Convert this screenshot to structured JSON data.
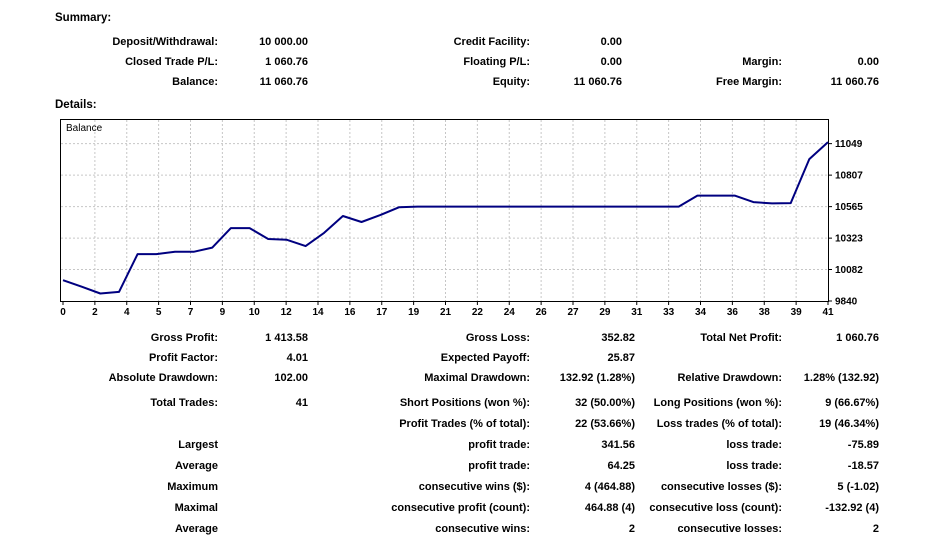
{
  "summary": {
    "heading": "Summary:",
    "rows": [
      {
        "c1l": "Deposit/Withdrawal:",
        "c1v": "10 000.00",
        "c2l": "Credit Facility:",
        "c2v": "0.00",
        "c3l": "",
        "c3v": ""
      },
      {
        "c1l": "Closed Trade P/L:",
        "c1v": "1 060.76",
        "c2l": "Floating P/L:",
        "c2v": "0.00",
        "c3l": "Margin:",
        "c3v": "0.00"
      },
      {
        "c1l": "Balance:",
        "c1v": "11 060.76",
        "c2l": "Equity:",
        "c2v": "11 060.76",
        "c3l": "Free Margin:",
        "c3v": "11 060.76"
      }
    ]
  },
  "details": {
    "heading": "Details:",
    "stats1": [
      {
        "c1l": "Gross Profit:",
        "c1v": "1 413.58",
        "c2l": "Gross Loss:",
        "c2v": "352.82",
        "c3l": "Total Net Profit:",
        "c3v": "1 060.76"
      },
      {
        "c1l": "Profit Factor:",
        "c1v": "4.01",
        "c2l": "Expected Payoff:",
        "c2v": "25.87",
        "c3l": "",
        "c3v": ""
      },
      {
        "c1l": "Absolute Drawdown:",
        "c1v": "102.00",
        "c2l": "Maximal Drawdown:",
        "c2v": "132.92 (1.28%)",
        "c3l": "Relative Drawdown:",
        "c3v": "1.28% (132.92)"
      }
    ],
    "stats2": [
      {
        "c1l": "Total Trades:",
        "c1v": "41",
        "c2l": "Short Positions (won %):",
        "c2v": "32 (50.00%)",
        "c3l": "Long Positions (won %):",
        "c3v": "9 (66.67%)"
      },
      {
        "c1l": "",
        "c1v": "",
        "c2l": "Profit Trades (% of total):",
        "c2v": "22 (53.66%)",
        "c3l": "Loss trades (% of total):",
        "c3v": "19 (46.34%)"
      },
      {
        "c1l": "Largest",
        "c1v": "",
        "c2l": "profit trade:",
        "c2v": "341.56",
        "c3l": "loss trade:",
        "c3v": "-75.89"
      },
      {
        "c1l": "Average",
        "c1v": "",
        "c2l": "profit trade:",
        "c2v": "64.25",
        "c3l": "loss trade:",
        "c3v": "-18.57"
      },
      {
        "c1l": "Maximum",
        "c1v": "",
        "c2l": "consecutive wins ($):",
        "c2v": "4 (464.88)",
        "c3l": "consecutive losses ($):",
        "c3v": "5 (-1.02)"
      },
      {
        "c1l": "Maximal",
        "c1v": "",
        "c2l": "consecutive profit (count):",
        "c2v": "464.88 (4)",
        "c3l": "consecutive loss (count):",
        "c3v": "-132.92 (4)"
      },
      {
        "c1l": "Average",
        "c1v": "",
        "c2l": "consecutive wins:",
        "c2v": "2",
        "c3l": "consecutive losses:",
        "c3v": "2"
      }
    ]
  },
  "chart_data": {
    "type": "line",
    "title": "Balance",
    "legend_position": "top-left-inside",
    "grid": true,
    "xlim": [
      0,
      41
    ],
    "ylim": [
      9840,
      11110
    ],
    "x_tick_labels": [
      0,
      2,
      4,
      5,
      7,
      9,
      10,
      12,
      14,
      16,
      17,
      19,
      21,
      22,
      24,
      26,
      27,
      29,
      31,
      33,
      34,
      36,
      38,
      39,
      41
    ],
    "y_ticks": [
      9840,
      10082,
      10323,
      10565,
      10807,
      11049
    ],
    "series": [
      {
        "name": "Balance",
        "x": [
          0,
          1,
          2,
          3,
          4,
          5,
          6,
          7,
          8,
          9,
          10,
          11,
          12,
          13,
          14,
          15,
          16,
          17,
          18,
          19,
          20,
          21,
          22,
          23,
          24,
          25,
          26,
          27,
          28,
          29,
          30,
          31,
          32,
          33,
          34,
          35,
          36,
          37,
          38,
          39,
          40,
          41
        ],
        "values": [
          10000,
          9950,
          9898,
          9910,
          10200,
          10200,
          10218,
          10218,
          10250,
          10400,
          10400,
          10316,
          10310,
          10262,
          10364,
          10493,
          10447,
          10500,
          10560,
          10565,
          10565,
          10565,
          10565,
          10565,
          10565,
          10565,
          10565,
          10565,
          10565,
          10565,
          10565,
          10565,
          10565,
          10565,
          10650,
          10650,
          10650,
          10600,
          10590,
          10592,
          10930,
          11060.76
        ]
      }
    ],
    "line_color": "#000080",
    "grid_color": "#c6c6c6",
    "border_color": "#000000",
    "text_color": "#000000"
  }
}
